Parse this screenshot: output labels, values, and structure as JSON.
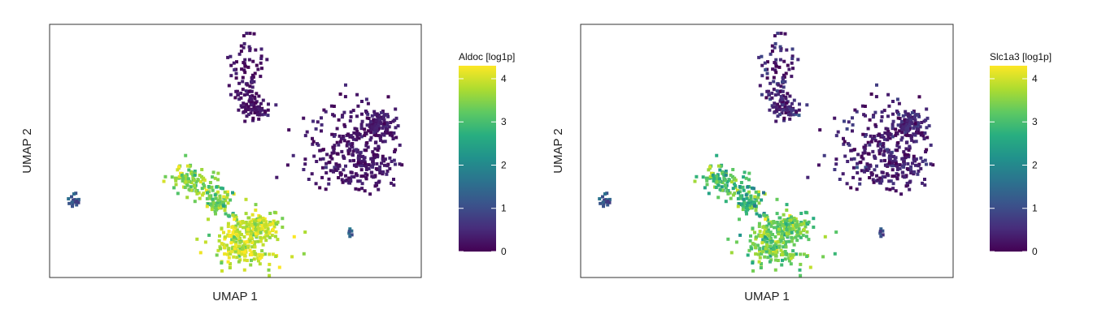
{
  "colors": {
    "viridis": [
      "#440154",
      "#472d7b",
      "#3b528b",
      "#2c728e",
      "#21918c",
      "#28ae80",
      "#5ec962",
      "#addc30",
      "#fde725"
    ],
    "frame": "#333333"
  },
  "chart_data": [
    {
      "type": "scatter",
      "xlabel": "UMAP 1",
      "ylabel": "UMAP 2",
      "colorbar": {
        "title": "Aldoc [log1p]",
        "ticks": [
          "0",
          "1",
          "2",
          "3",
          "4"
        ],
        "range": [
          0,
          4.3
        ]
      },
      "grid": false,
      "clusters": [
        {
          "name": "top",
          "mean_expression": 0.2,
          "spread": 0.15
        },
        {
          "name": "right",
          "mean_expression": 0.25,
          "spread": 0.15
        },
        {
          "name": "left-small",
          "mean_expression": 1.0,
          "spread": 0.35
        },
        {
          "name": "middle-left",
          "mean_expression": 3.5,
          "spread": 0.35
        },
        {
          "name": "bottom-center",
          "mean_expression": 3.9,
          "spread": 0.3
        },
        {
          "name": "small-right",
          "mean_expression": 1.4,
          "spread": 0.3
        }
      ]
    },
    {
      "type": "scatter",
      "xlabel": "UMAP 1",
      "ylabel": "UMAP 2",
      "colorbar": {
        "title": "Slc1a3 [log1p]",
        "ticks": [
          "0",
          "1",
          "2",
          "3",
          "4"
        ],
        "range": [
          0,
          4.3
        ]
      },
      "grid": false,
      "clusters": [
        {
          "name": "top",
          "mean_expression": 0.4,
          "spread": 0.3
        },
        {
          "name": "right",
          "mean_expression": 0.35,
          "spread": 0.25
        },
        {
          "name": "left-small",
          "mean_expression": 1.0,
          "spread": 0.4
        },
        {
          "name": "middle-left",
          "mean_expression": 3.0,
          "spread": 0.45
        },
        {
          "name": "bottom-center",
          "mean_expression": 3.3,
          "spread": 0.35
        },
        {
          "name": "small-right",
          "mean_expression": 1.0,
          "spread": 0.3
        }
      ]
    }
  ]
}
